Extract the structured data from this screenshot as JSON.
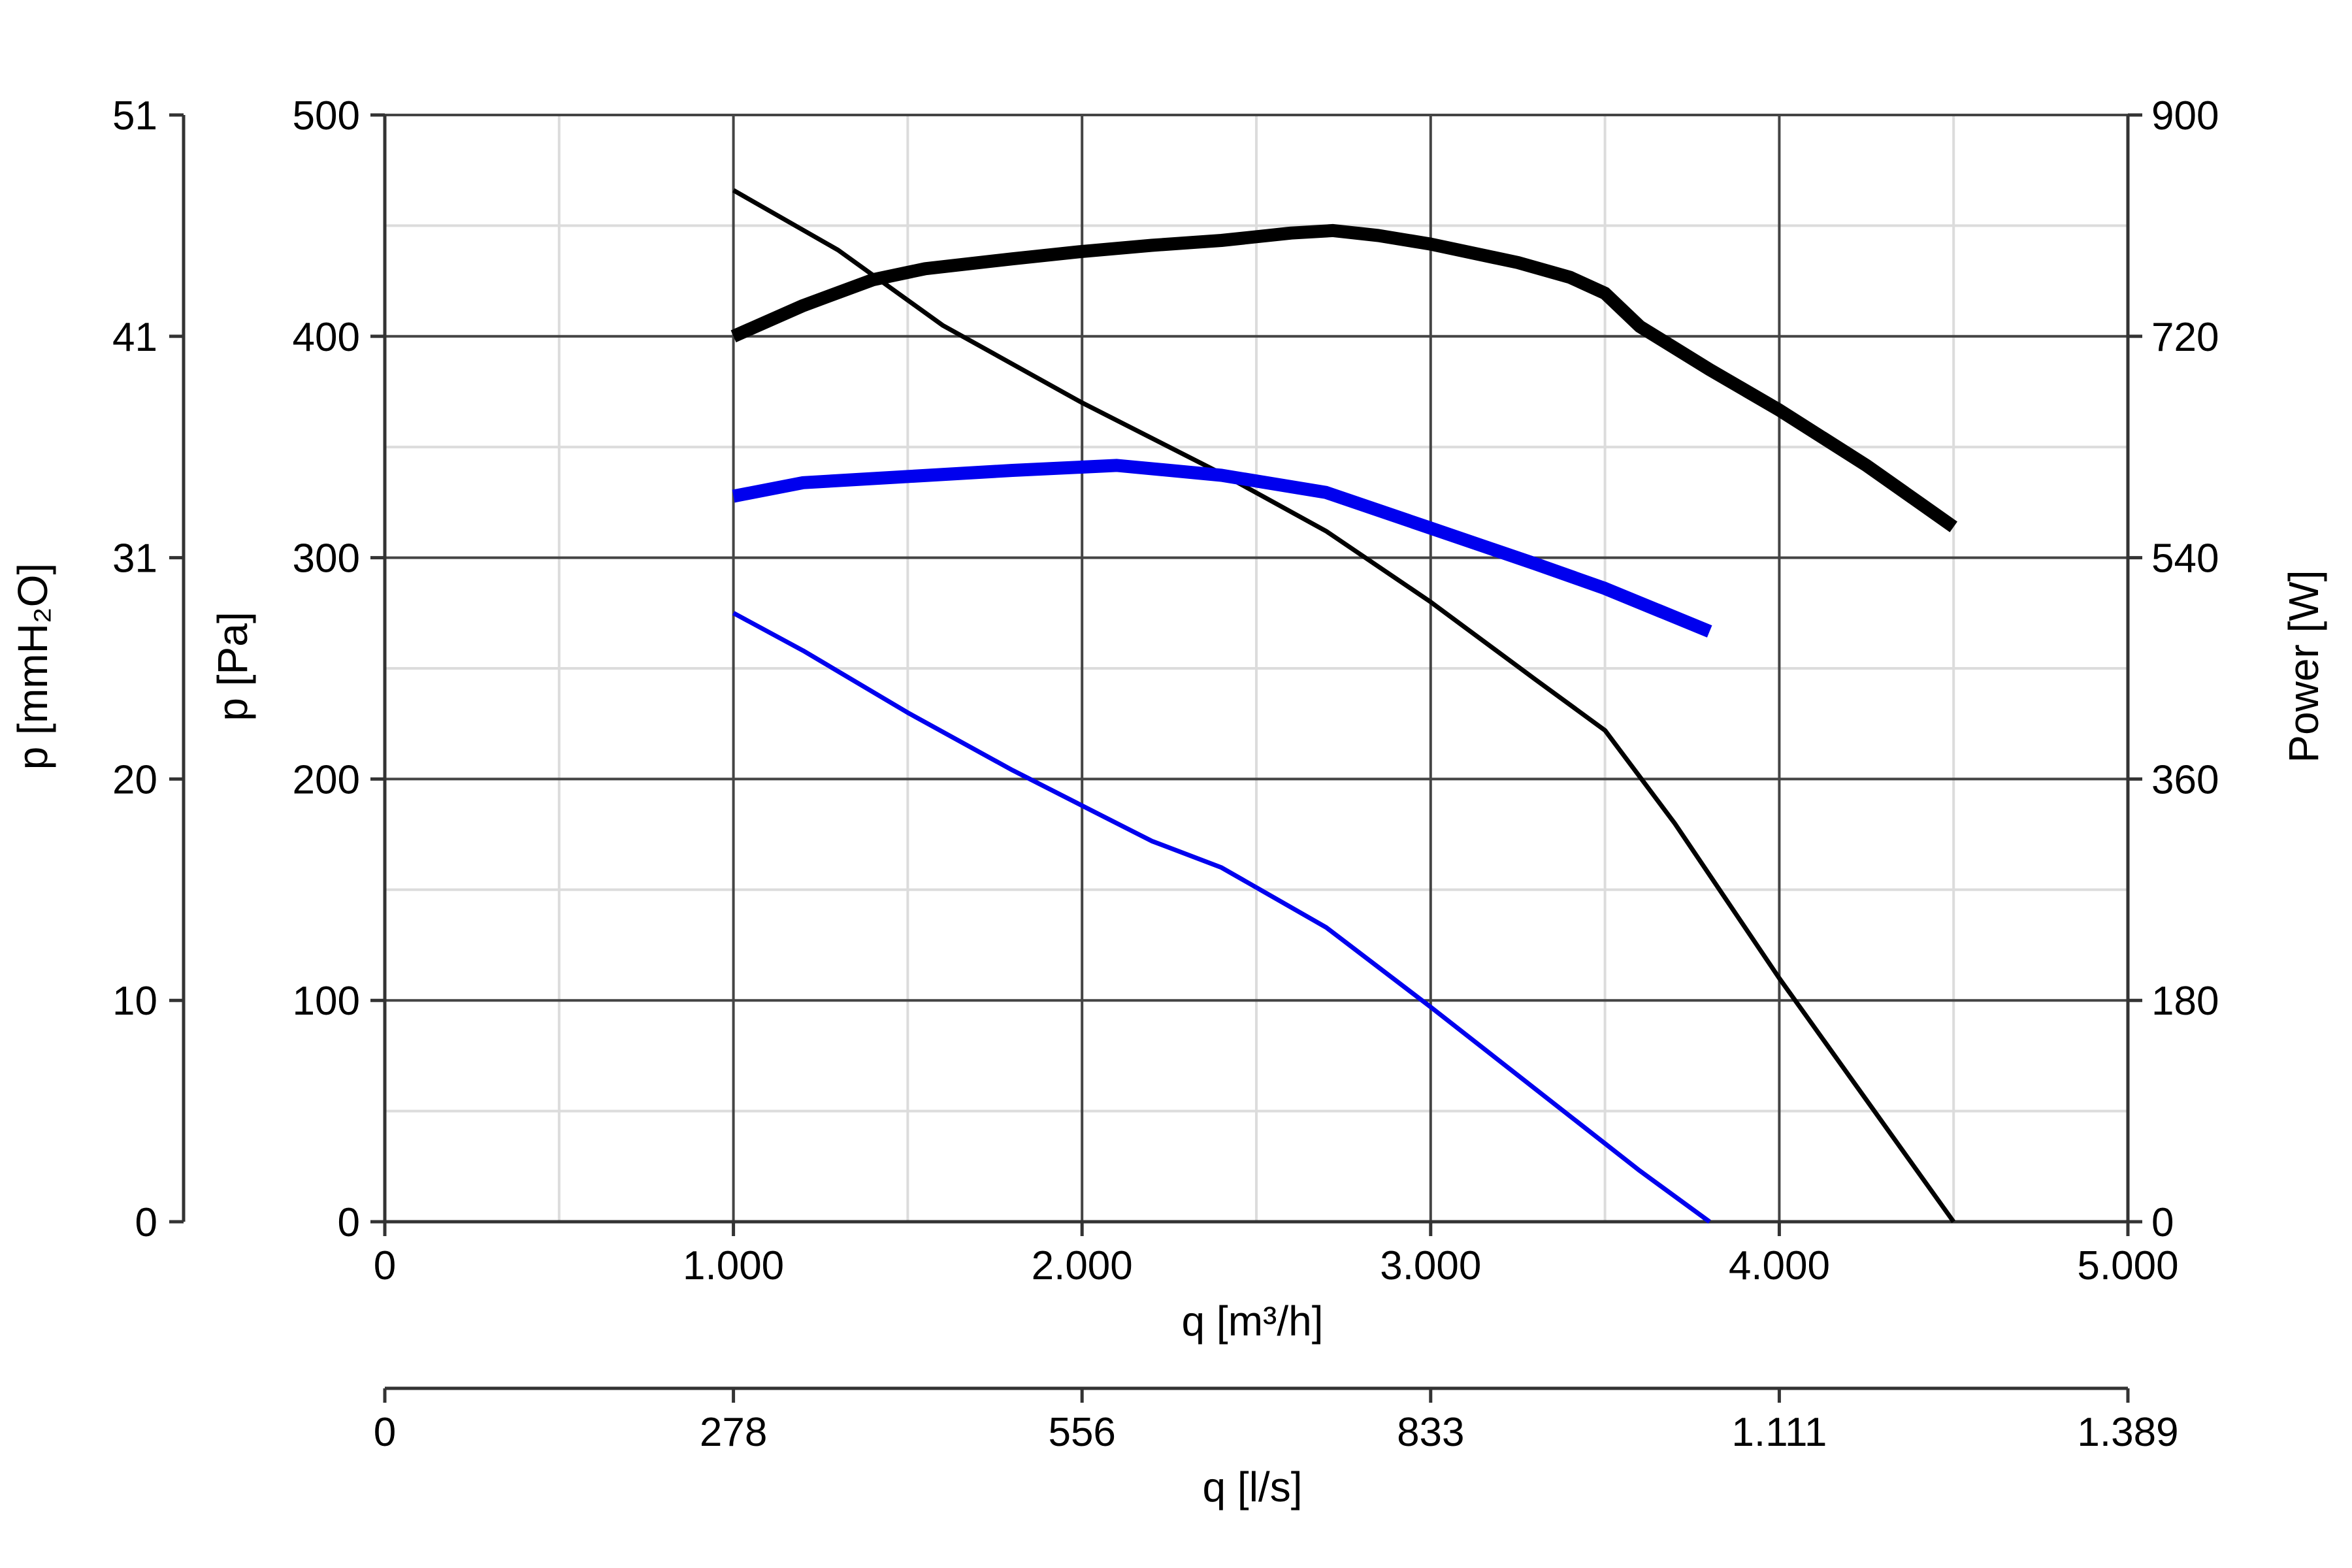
{
  "chart_data": {
    "type": "line",
    "title": "",
    "x_axis": {
      "label": "q [m³/h]",
      "range": [
        0,
        5000
      ],
      "ticks": [
        0,
        1000,
        2000,
        3000,
        4000,
        5000
      ],
      "tick_labels": [
        "0",
        "1.000",
        "2.000",
        "3.000",
        "4.000",
        "5.000"
      ]
    },
    "x2_axis": {
      "label": "q [l/s]",
      "tick_labels": [
        "0",
        "278",
        "556",
        "833",
        "1.111",
        "1.389"
      ]
    },
    "y_axis": {
      "label": "p [Pa]",
      "range": [
        0,
        500
      ],
      "ticks": [
        0,
        100,
        200,
        300,
        400,
        500
      ],
      "tick_labels": [
        "0",
        "100",
        "200",
        "300",
        "400",
        "500"
      ]
    },
    "y2_axis": {
      "label": "p [mmH₂O]",
      "tick_labels": [
        "0",
        "10",
        "20",
        "31",
        "41",
        "51"
      ]
    },
    "y3_axis": {
      "label": "Power [W]",
      "range": [
        0,
        900
      ],
      "tick_labels": [
        "0",
        "180",
        "360",
        "540",
        "720",
        "900"
      ]
    },
    "grid": true,
    "series": [
      {
        "axis": "pressure",
        "color": "#000000",
        "weight": "thin",
        "points": [
          [
            1000,
            466
          ],
          [
            1300,
            439
          ],
          [
            1600,
            405
          ],
          [
            2000,
            370
          ],
          [
            2400,
            338
          ],
          [
            2700,
            312
          ],
          [
            3000,
            280
          ],
          [
            3300,
            245
          ],
          [
            3500,
            222
          ],
          [
            3700,
            180
          ],
          [
            4000,
            110
          ],
          [
            4250,
            55
          ],
          [
            4500,
            0
          ]
        ]
      },
      {
        "axis": "pressure",
        "color": "#0000ee",
        "weight": "thin",
        "points": [
          [
            1000,
            275
          ],
          [
            1200,
            258
          ],
          [
            1500,
            230
          ],
          [
            1800,
            204
          ],
          [
            2000,
            188
          ],
          [
            2200,
            172
          ],
          [
            2400,
            160
          ],
          [
            2700,
            133
          ],
          [
            3000,
            97
          ],
          [
            3300,
            60
          ],
          [
            3600,
            23
          ],
          [
            3800,
            0
          ]
        ]
      },
      {
        "axis": "power",
        "color": "#000000",
        "weight": "thick",
        "points": [
          [
            1000,
            720
          ],
          [
            1200,
            745
          ],
          [
            1400,
            766
          ],
          [
            1550,
            775
          ],
          [
            1800,
            783
          ],
          [
            2000,
            789
          ],
          [
            2200,
            794
          ],
          [
            2400,
            798
          ],
          [
            2600,
            804
          ],
          [
            2720,
            806
          ],
          [
            2850,
            802
          ],
          [
            3000,
            795
          ],
          [
            3250,
            780
          ],
          [
            3400,
            768
          ],
          [
            3500,
            755
          ],
          [
            3600,
            728
          ],
          [
            3800,
            693
          ],
          [
            4000,
            660
          ],
          [
            4250,
            615
          ],
          [
            4500,
            565
          ]
        ]
      },
      {
        "axis": "power",
        "color": "#0000ee",
        "weight": "thick",
        "points": [
          [
            1000,
            590
          ],
          [
            1200,
            601
          ],
          [
            1500,
            606
          ],
          [
            1800,
            611
          ],
          [
            2100,
            615
          ],
          [
            2400,
            607
          ],
          [
            2700,
            593
          ],
          [
            3000,
            564
          ],
          [
            3300,
            535
          ],
          [
            3500,
            515
          ],
          [
            3800,
            480
          ]
        ]
      }
    ]
  }
}
